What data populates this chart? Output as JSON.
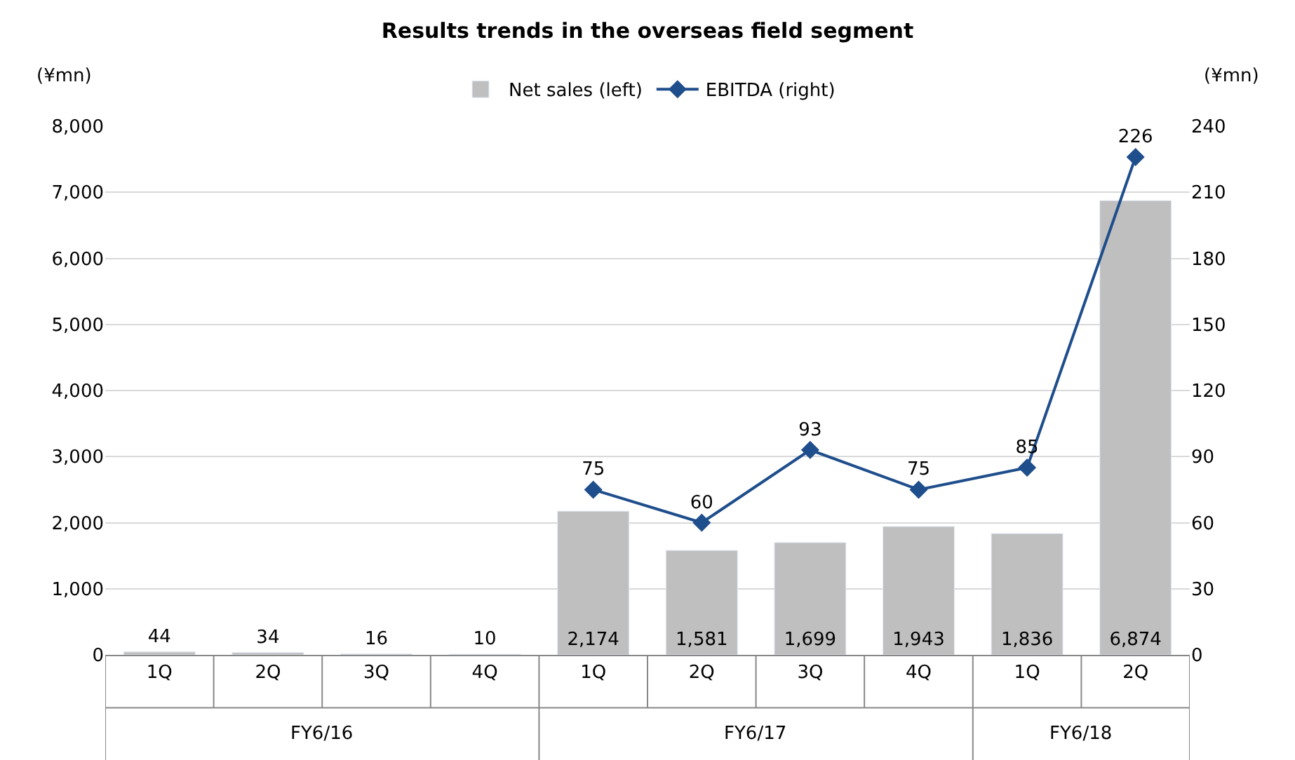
{
  "chart_data": {
    "type": "bar",
    "title": "Results trends in the overseas field segment",
    "ylabel": "(¥mn)",
    "y2label": "(¥mn)",
    "categories": [
      "1Q",
      "2Q",
      "3Q",
      "4Q",
      "1Q",
      "2Q",
      "3Q",
      "4Q",
      "1Q",
      "2Q"
    ],
    "annotations": [
      "FY6/16",
      "FY6/17",
      "FY6/18"
    ],
    "series": [
      {
        "name": "Net sales (left)",
        "color": "#bfbfbf",
        "values": [
          44,
          34,
          16,
          10,
          2174,
          1581,
          1699,
          1943,
          1836,
          6874
        ],
        "value_labels": [
          "44",
          "34",
          "16",
          "10",
          "2,174",
          "1,581",
          "1,699",
          "1,943",
          "1,836",
          "6,874"
        ]
      },
      {
        "name": "EBITDA (right)",
        "type": "line",
        "axis": "y2",
        "color": "#1f4e8c",
        "marker": "diamond",
        "values": [
          null,
          null,
          null,
          null,
          75,
          60,
          93,
          75,
          85,
          226
        ],
        "value_labels": [
          null,
          null,
          null,
          null,
          "75",
          "60",
          "93",
          "75",
          "85",
          "226"
        ]
      }
    ],
    "ylim": [
      0,
      8000
    ],
    "yticks": [
      {
        "value": 0,
        "label": "0"
      },
      {
        "value": 1000,
        "label": "1,000"
      },
      {
        "value": 2000,
        "label": "2,000"
      },
      {
        "value": 3000,
        "label": "3,000"
      },
      {
        "value": 4000,
        "label": "4,000"
      },
      {
        "value": 5000,
        "label": "5,000"
      },
      {
        "value": 6000,
        "label": "6,000"
      },
      {
        "value": 7000,
        "label": "7,000"
      },
      {
        "value": 8000,
        "label": "8,000"
      }
    ],
    "y2lim": [
      0,
      240
    ],
    "y2ticks": [
      0,
      30,
      60,
      90,
      120,
      150,
      180,
      210,
      240
    ],
    "grid": "y",
    "legend": "top"
  }
}
